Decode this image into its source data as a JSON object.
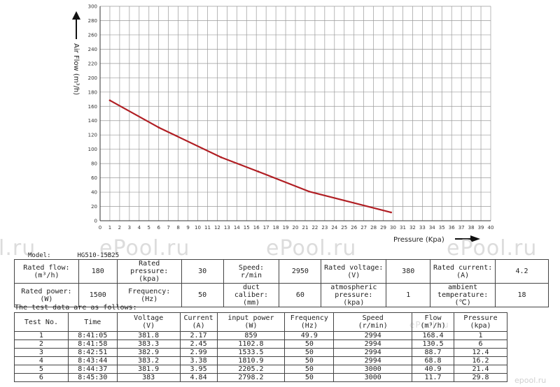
{
  "chart_data": {
    "type": "line",
    "title": "",
    "xlabel": "Pressure (Kpa)",
    "ylabel": "Air Flow (m³/h)",
    "xlim": [
      0,
      40
    ],
    "ylim": [
      0,
      300
    ],
    "xticks": [
      "0",
      "1",
      "2",
      "3",
      "4",
      "5",
      "6",
      "7",
      "8",
      "9",
      "10",
      "11",
      "12",
      "13",
      "14",
      "15",
      "16",
      "17",
      "18",
      "19",
      "20",
      "21",
      "22",
      "23",
      "24",
      "25",
      "26",
      "27",
      "28",
      "29",
      "30",
      "31",
      "32",
      "33",
      "34",
      "35",
      "36",
      "37",
      "38",
      "39",
      "40"
    ],
    "yticks": [
      "0",
      "20",
      "40",
      "60",
      "80",
      "100",
      "120",
      "140",
      "160",
      "180",
      "200",
      "220",
      "240",
      "260",
      "280",
      "300"
    ],
    "grid": true,
    "series": [
      {
        "color": "#b01e23",
        "x": [
          1,
          6,
          12.4,
          16.2,
          21.4,
          29.8
        ],
        "y": [
          168.4,
          130.5,
          88.7,
          68.8,
          40.9,
          11.7
        ]
      }
    ]
  },
  "watermarks": [
    "l.ru",
    "ePool.ru",
    "ePool.ru",
    "ePool.ru",
    "ePool.ru",
    "epool.ru"
  ],
  "model": {
    "label": "Model:",
    "value": "HG510-15B25"
  },
  "spec": {
    "rated_flow_label": "Rated flow:",
    "rated_flow_unit": "(m³/h)",
    "rated_flow": "180",
    "rated_pressure_label": "Rated pressure:",
    "rated_pressure_unit": "(kpa)",
    "rated_pressure": "30",
    "speed_label": "Speed:",
    "speed_unit": "r/min",
    "speed": "2950",
    "rated_voltage_label": "Rated voltage:",
    "rated_voltage_unit": "(V)",
    "rated_voltage": "380",
    "rated_current_label": "Rated current:",
    "rated_current_unit": "(A)",
    "rated_current": "4.2",
    "rated_power_label": "Rated power:",
    "rated_power_unit": "(W)",
    "rated_power": "1500",
    "frequency_label": "Frequency:",
    "frequency_unit": "(Hz)",
    "frequency": "50",
    "duct_label": "duct caliber:",
    "duct_unit": "(mm)",
    "duct": "60",
    "atm_label": "atmospheric",
    "atm_label2": "pressure:",
    "atm_unit": "(kpa)",
    "atm": "1",
    "amb_label": "ambient",
    "amb_label2": "temperature:",
    "amb_unit": "(℃)",
    "amb": "18"
  },
  "test_note": "The test data are as follows:",
  "test_table": {
    "headers": [
      {
        "name": "Test No.",
        "unit": ""
      },
      {
        "name": "Time",
        "unit": ""
      },
      {
        "name": "Voltage",
        "unit": "(V)"
      },
      {
        "name": "Current",
        "unit": "(A)"
      },
      {
        "name": "input power",
        "unit": "(W)"
      },
      {
        "name": "Frequency",
        "unit": "(Hz)"
      },
      {
        "name": "Speed",
        "unit": "(r/min)"
      },
      {
        "name": "Flow",
        "unit": "(m³/h)"
      },
      {
        "name": "Pressure",
        "unit": "(kpa)"
      }
    ],
    "rows": [
      [
        "1",
        "8:41:05",
        "381.8",
        "2.17",
        "859",
        "49.9",
        "2994",
        "168.4",
        "1"
      ],
      [
        "2",
        "8:41:58",
        "383.3",
        "2.45",
        "1102.8",
        "50",
        "2994",
        "130.5",
        "6"
      ],
      [
        "3",
        "8:42:51",
        "382.9",
        "2.99",
        "1533.5",
        "50",
        "2994",
        "88.7",
        "12.4"
      ],
      [
        "4",
        "8:43:44",
        "383.2",
        "3.38",
        "1810.9",
        "50",
        "2994",
        "68.8",
        "16.2"
      ],
      [
        "5",
        "8:44:37",
        "381.9",
        "3.95",
        "2205.2",
        "50",
        "3000",
        "40.9",
        "21.4"
      ],
      [
        "6",
        "8:45:30",
        "383",
        "4.84",
        "2798.2",
        "50",
        "3000",
        "11.7",
        "29.8"
      ]
    ]
  }
}
